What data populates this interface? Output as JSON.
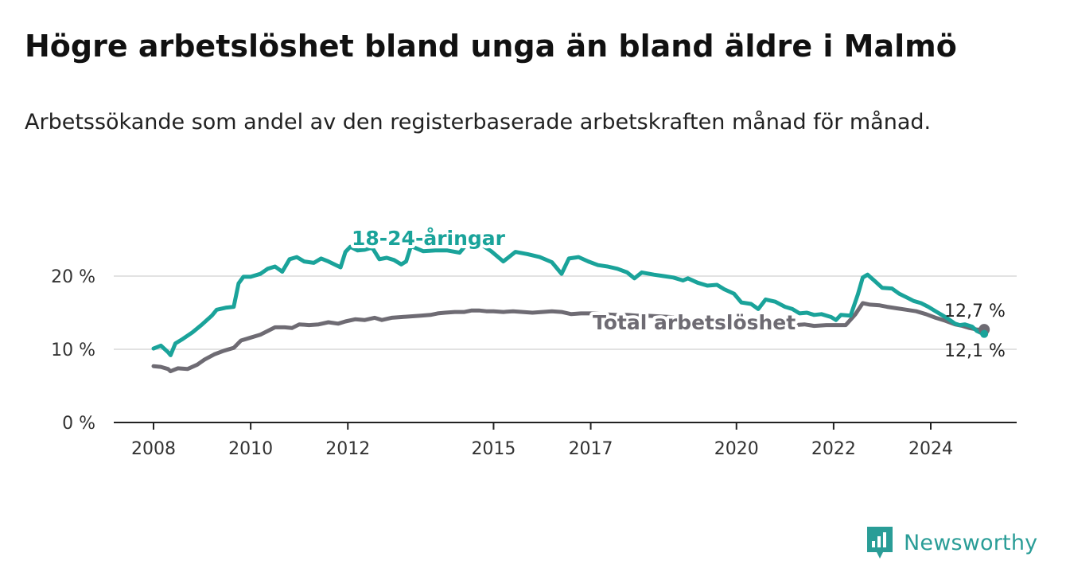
{
  "title": "Högre arbetslöshet bland unga än bland äldre i Malmö",
  "subtitle": "Arbetssökande som andel av den registerbaserade arbetskraften månad för månad.",
  "brand": {
    "name": "Newsworthy",
    "icon": "newsworthy-logo-icon",
    "color": "#2a9d97"
  },
  "chart_data": {
    "type": "line",
    "title": "Högre arbetslöshet bland unga än bland äldre i Malmö",
    "subtitle": "Arbetssökande som andel av den registerbaserade arbetskraften månad för månad.",
    "xlabel": "",
    "ylabel": "",
    "xlim": [
      2008,
      2025.2
    ],
    "ylim": [
      0,
      22
    ],
    "x_ticks": [
      2008,
      2010,
      2012,
      2015,
      2017,
      2020,
      2022,
      2024
    ],
    "x_tick_labels": [
      "2008",
      "2010",
      "2012",
      "2015",
      "2017",
      "2020",
      "2022",
      "2024"
    ],
    "y_ticks": [
      0,
      10,
      20
    ],
    "y_tick_labels": [
      "0 %",
      "10 %",
      "20 %"
    ],
    "grid": true,
    "legend": "inline labels",
    "series": [
      {
        "name": "18-24-åringar",
        "color": "#1aa39a",
        "end_label": "12,1 %",
        "points": [
          [
            2008.0,
            10.1
          ],
          [
            2008.15,
            10.5
          ],
          [
            2008.3,
            9.6
          ],
          [
            2008.35,
            9.2
          ],
          [
            2008.45,
            10.8
          ],
          [
            2008.6,
            11.4
          ],
          [
            2008.8,
            12.3
          ],
          [
            2009.0,
            13.4
          ],
          [
            2009.2,
            14.6
          ],
          [
            2009.3,
            15.4
          ],
          [
            2009.5,
            15.7
          ],
          [
            2009.65,
            15.8
          ],
          [
            2009.75,
            19.0
          ],
          [
            2009.85,
            19.9
          ],
          [
            2010.0,
            19.9
          ],
          [
            2010.2,
            20.3
          ],
          [
            2010.35,
            21.0
          ],
          [
            2010.5,
            21.3
          ],
          [
            2010.65,
            20.6
          ],
          [
            2010.8,
            22.3
          ],
          [
            2010.95,
            22.6
          ],
          [
            2011.1,
            22.0
          ],
          [
            2011.3,
            21.8
          ],
          [
            2011.45,
            22.4
          ],
          [
            2011.6,
            22.0
          ],
          [
            2011.85,
            21.2
          ],
          [
            2011.95,
            23.3
          ],
          [
            2012.05,
            24.0
          ],
          [
            2012.2,
            23.5
          ],
          [
            2012.35,
            23.6
          ],
          [
            2012.5,
            23.9
          ],
          [
            2012.65,
            22.3
          ],
          [
            2012.8,
            22.5
          ],
          [
            2012.95,
            22.2
          ],
          [
            2013.1,
            21.6
          ],
          [
            2013.2,
            22.0
          ],
          [
            2013.3,
            24.1
          ],
          [
            2013.55,
            23.4
          ],
          [
            2013.8,
            23.5
          ],
          [
            2014.05,
            23.5
          ],
          [
            2014.3,
            23.2
          ],
          [
            2014.45,
            24.4
          ],
          [
            2014.7,
            24.5
          ],
          [
            2014.95,
            23.4
          ],
          [
            2015.2,
            22.0
          ],
          [
            2015.45,
            23.3
          ],
          [
            2015.7,
            23.0
          ],
          [
            2015.95,
            22.6
          ],
          [
            2016.2,
            21.9
          ],
          [
            2016.4,
            20.3
          ],
          [
            2016.55,
            22.4
          ],
          [
            2016.75,
            22.6
          ],
          [
            2016.95,
            22.0
          ],
          [
            2017.15,
            21.5
          ],
          [
            2017.35,
            21.3
          ],
          [
            2017.55,
            21.0
          ],
          [
            2017.75,
            20.5
          ],
          [
            2017.9,
            19.7
          ],
          [
            2018.05,
            20.5
          ],
          [
            2018.3,
            20.2
          ],
          [
            2018.5,
            20.0
          ],
          [
            2018.7,
            19.8
          ],
          [
            2018.9,
            19.4
          ],
          [
            2019.0,
            19.7
          ],
          [
            2019.2,
            19.1
          ],
          [
            2019.4,
            18.7
          ],
          [
            2019.6,
            18.8
          ],
          [
            2019.75,
            18.2
          ],
          [
            2019.95,
            17.6
          ],
          [
            2020.1,
            16.4
          ],
          [
            2020.3,
            16.2
          ],
          [
            2020.45,
            15.5
          ],
          [
            2020.6,
            16.8
          ],
          [
            2020.8,
            16.5
          ],
          [
            2021.0,
            15.8
          ],
          [
            2021.15,
            15.5
          ],
          [
            2021.3,
            14.9
          ],
          [
            2021.45,
            15.0
          ],
          [
            2021.6,
            14.7
          ],
          [
            2021.75,
            14.8
          ],
          [
            2021.95,
            14.4
          ],
          [
            2022.05,
            14.0
          ],
          [
            2022.15,
            14.7
          ],
          [
            2022.35,
            14.6
          ],
          [
            2022.5,
            17.5
          ],
          [
            2022.6,
            19.8
          ],
          [
            2022.7,
            20.2
          ],
          [
            2022.85,
            19.3
          ],
          [
            2023.0,
            18.4
          ],
          [
            2023.2,
            18.3
          ],
          [
            2023.35,
            17.6
          ],
          [
            2023.5,
            17.1
          ],
          [
            2023.65,
            16.6
          ],
          [
            2023.8,
            16.3
          ],
          [
            2023.95,
            15.8
          ],
          [
            2024.1,
            15.2
          ],
          [
            2024.25,
            14.6
          ],
          [
            2024.35,
            14.2
          ],
          [
            2024.5,
            13.5
          ],
          [
            2024.6,
            13.3
          ],
          [
            2024.7,
            13.4
          ],
          [
            2024.85,
            13.1
          ],
          [
            2024.95,
            12.5
          ],
          [
            2025.05,
            12.2
          ],
          [
            2025.1,
            12.1
          ]
        ]
      },
      {
        "name": "Total arbetslöshet",
        "color": "#6e6b73",
        "end_label": "12,7 %",
        "points": [
          [
            2008.0,
            7.7
          ],
          [
            2008.15,
            7.6
          ],
          [
            2008.3,
            7.3
          ],
          [
            2008.35,
            7.0
          ],
          [
            2008.5,
            7.4
          ],
          [
            2008.7,
            7.3
          ],
          [
            2008.9,
            7.9
          ],
          [
            2009.05,
            8.6
          ],
          [
            2009.25,
            9.3
          ],
          [
            2009.45,
            9.8
          ],
          [
            2009.65,
            10.2
          ],
          [
            2009.8,
            11.2
          ],
          [
            2010.0,
            11.6
          ],
          [
            2010.2,
            12.0
          ],
          [
            2010.35,
            12.5
          ],
          [
            2010.5,
            13.0
          ],
          [
            2010.7,
            13.0
          ],
          [
            2010.85,
            12.9
          ],
          [
            2011.0,
            13.4
          ],
          [
            2011.2,
            13.3
          ],
          [
            2011.4,
            13.4
          ],
          [
            2011.6,
            13.7
          ],
          [
            2011.8,
            13.5
          ],
          [
            2011.95,
            13.8
          ],
          [
            2012.15,
            14.1
          ],
          [
            2012.35,
            14.0
          ],
          [
            2012.55,
            14.3
          ],
          [
            2012.7,
            14.0
          ],
          [
            2012.9,
            14.3
          ],
          [
            2013.1,
            14.4
          ],
          [
            2013.3,
            14.5
          ],
          [
            2013.5,
            14.6
          ],
          [
            2013.7,
            14.7
          ],
          [
            2013.85,
            14.9
          ],
          [
            2014.0,
            15.0
          ],
          [
            2014.2,
            15.1
          ],
          [
            2014.4,
            15.1
          ],
          [
            2014.55,
            15.3
          ],
          [
            2014.7,
            15.3
          ],
          [
            2014.85,
            15.2
          ],
          [
            2015.0,
            15.2
          ],
          [
            2015.2,
            15.1
          ],
          [
            2015.4,
            15.2
          ],
          [
            2015.6,
            15.1
          ],
          [
            2015.8,
            15.0
          ],
          [
            2016.0,
            15.1
          ],
          [
            2016.2,
            15.2
          ],
          [
            2016.4,
            15.1
          ],
          [
            2016.6,
            14.8
          ],
          [
            2016.8,
            14.9
          ],
          [
            2017.0,
            14.9
          ],
          [
            2017.25,
            14.8
          ],
          [
            2017.5,
            14.7
          ],
          [
            2017.75,
            14.7
          ],
          [
            2017.95,
            14.6
          ],
          [
            2018.15,
            14.6
          ],
          [
            2018.4,
            14.5
          ],
          [
            2018.65,
            14.4
          ],
          [
            2018.9,
            14.2
          ],
          [
            2019.1,
            14.0
          ],
          [
            2019.35,
            13.9
          ],
          [
            2019.55,
            13.7
          ],
          [
            2019.8,
            13.5
          ],
          [
            2020.05,
            13.6
          ],
          [
            2020.3,
            13.6
          ],
          [
            2020.55,
            13.5
          ],
          [
            2020.8,
            13.3
          ],
          [
            2021.0,
            13.2
          ],
          [
            2021.2,
            13.3
          ],
          [
            2021.4,
            13.4
          ],
          [
            2021.6,
            13.2
          ],
          [
            2021.85,
            13.3
          ],
          [
            2022.05,
            13.3
          ],
          [
            2022.25,
            13.3
          ],
          [
            2022.45,
            14.8
          ],
          [
            2022.6,
            16.3
          ],
          [
            2022.75,
            16.1
          ],
          [
            2022.95,
            16.0
          ],
          [
            2023.1,
            15.8
          ],
          [
            2023.3,
            15.6
          ],
          [
            2023.5,
            15.4
          ],
          [
            2023.7,
            15.2
          ],
          [
            2023.9,
            14.8
          ],
          [
            2024.1,
            14.3
          ],
          [
            2024.3,
            13.9
          ],
          [
            2024.5,
            13.4
          ],
          [
            2024.65,
            13.2
          ],
          [
            2024.8,
            12.9
          ],
          [
            2024.95,
            12.7
          ],
          [
            2025.1,
            12.7
          ]
        ]
      }
    ]
  }
}
